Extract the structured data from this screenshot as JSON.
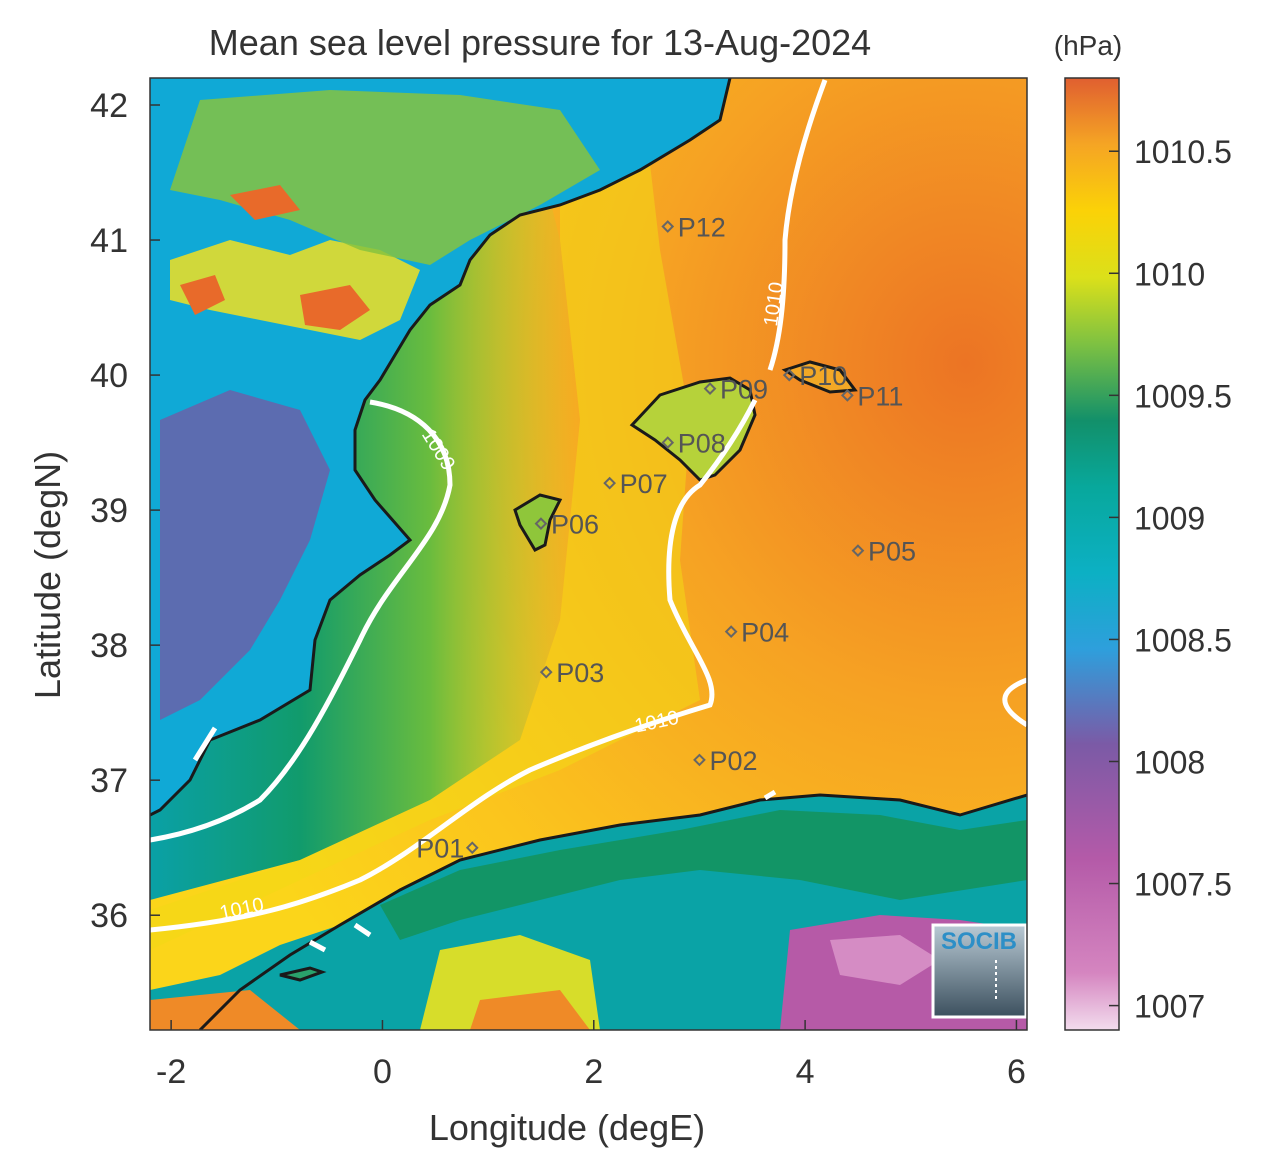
{
  "title": "Mean sea level pressure for 13-Aug-2024",
  "units": "(hPa)",
  "axes": {
    "xlabel": "Longitude (degE)",
    "ylabel": "Latitude (degN)",
    "xlim": [
      -2.2,
      6.1
    ],
    "ylim": [
      35.15,
      42.2
    ],
    "xticks": [
      "-2",
      "0",
      "2",
      "4",
      "6"
    ],
    "yticks": [
      "42",
      "41",
      "40",
      "39",
      "38",
      "37",
      "36"
    ]
  },
  "colorbar": {
    "range": [
      1006.9,
      1010.8
    ],
    "ticks": [
      "1010.5",
      "1010",
      "1009.5",
      "1009",
      "1008.5",
      "1008",
      "1007.5",
      "1007"
    ],
    "colors": [
      "#e8c9dd",
      "#c35fa8",
      "#7b5aa6",
      "#2e9fdc",
      "#0ba9a9",
      "#12906a",
      "#b8d430",
      "#fde403",
      "#f7a623",
      "#ea7628",
      "#e05f30"
    ]
  },
  "contours": [
    "1009",
    "1010",
    "1010",
    "1010"
  ],
  "points": [
    {
      "name": "P01",
      "lon": 0.85,
      "lat": 36.5
    },
    {
      "name": "P02",
      "lon": 3.0,
      "lat": 37.15
    },
    {
      "name": "P03",
      "lon": 1.55,
      "lat": 37.8
    },
    {
      "name": "P04",
      "lon": 3.3,
      "lat": 38.1
    },
    {
      "name": "P05",
      "lon": 4.5,
      "lat": 38.7
    },
    {
      "name": "P06",
      "lon": 1.5,
      "lat": 38.9
    },
    {
      "name": "P07",
      "lon": 2.15,
      "lat": 39.2
    },
    {
      "name": "P08",
      "lon": 2.7,
      "lat": 39.5
    },
    {
      "name": "P09",
      "lon": 3.1,
      "lat": 39.9
    },
    {
      "name": "P10",
      "lon": 3.85,
      "lat": 40.0
    },
    {
      "name": "P11",
      "lon": 4.4,
      "lat": 39.85
    },
    {
      "name": "P12",
      "lon": 2.7,
      "lat": 41.1
    }
  ],
  "logo": "SOCIB"
}
